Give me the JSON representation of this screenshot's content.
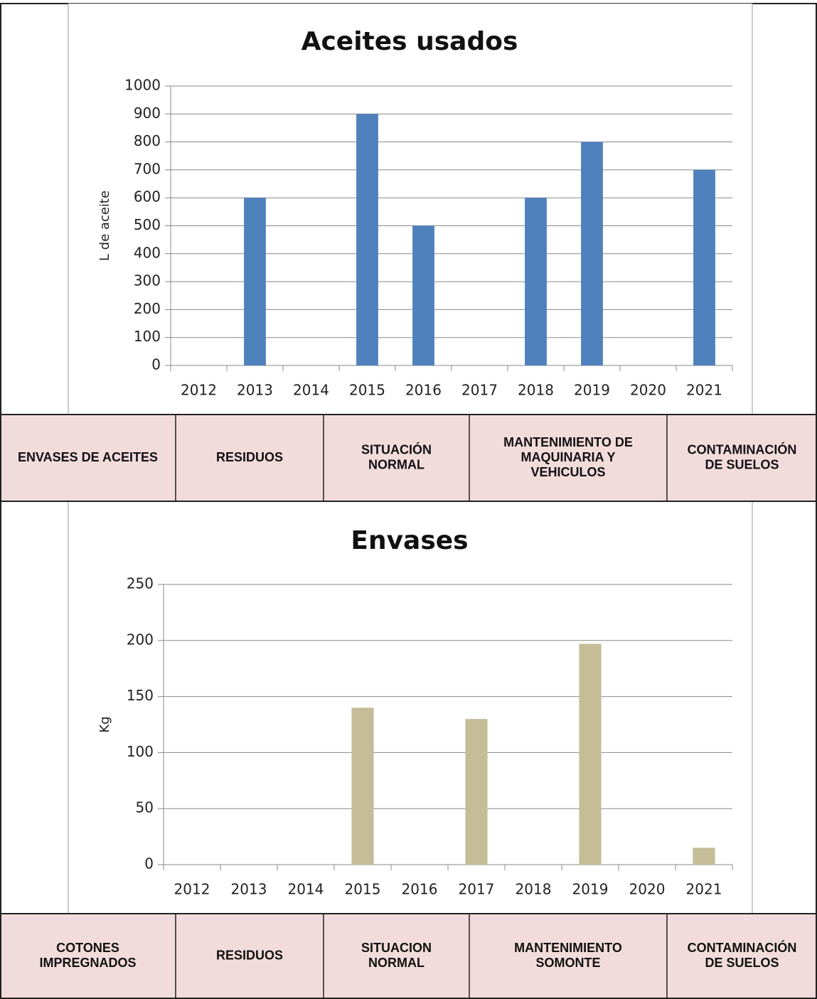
{
  "chart_data": [
    {
      "type": "bar",
      "title": "Aceites usados",
      "y_label": "L de aceite",
      "categories": [
        "2012",
        "2013",
        "2014",
        "2015",
        "2016",
        "2017",
        "2018",
        "2019",
        "2020",
        "2021"
      ],
      "values": [
        0,
        600,
        0,
        900,
        500,
        0,
        600,
        800,
        0,
        700
      ],
      "color": "#4f81bd",
      "ylim": [
        0,
        1000
      ],
      "yticks": [
        0,
        100,
        200,
        300,
        400,
        500,
        600,
        700,
        800,
        900,
        1000
      ],
      "grid": true
    },
    {
      "type": "bar",
      "title": "Envases",
      "y_label": "Kg",
      "categories": [
        "2012",
        "2013",
        "2014",
        "2015",
        "2016",
        "2017",
        "2018",
        "2019",
        "2020",
        "2021"
      ],
      "values": [
        0,
        0,
        0,
        140,
        0,
        130,
        0,
        197,
        0,
        15
      ],
      "color": "#c4bd97",
      "ylim": [
        0,
        250
      ],
      "yticks": [
        0,
        50,
        100,
        150,
        200,
        250
      ],
      "grid": true
    }
  ],
  "table": {
    "rows": [
      [
        [
          "ENVASES DE ACEITES"
        ],
        [
          "RESIDUOS"
        ],
        [
          "SITUACIÓN",
          "NORMAL"
        ],
        [
          "MANTENIMIENTO DE",
          "MAQUINARIA Y",
          "VEHICULOS"
        ],
        [
          "CONTAMINACIÓN",
          "DE SUELOS"
        ]
      ],
      [
        [
          "COTONES",
          "IMPREGNADOS"
        ],
        [
          "RESIDUOS"
        ],
        [
          "SITUACION",
          "NORMAL"
        ],
        [
          "MANTENIMIENTO",
          "SOMONTE"
        ],
        [
          "CONTAMINACIÓN",
          "DE SUELOS"
        ]
      ]
    ]
  }
}
